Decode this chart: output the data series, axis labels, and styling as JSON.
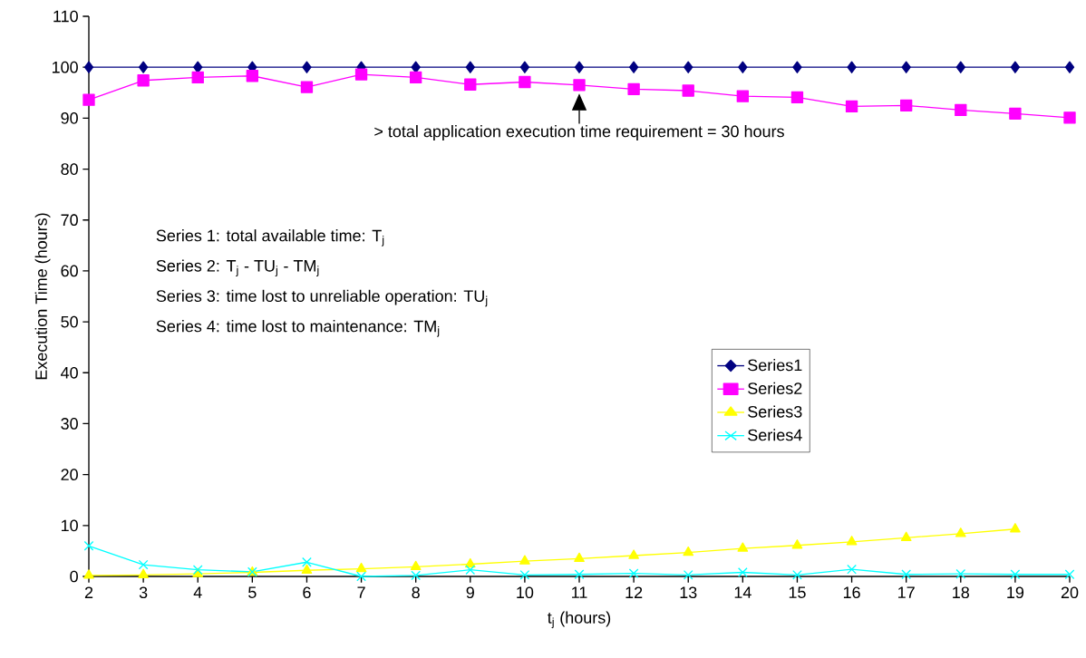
{
  "chart_data": {
    "type": "line",
    "xlabel": "t$_{j}$ (hours)",
    "ylabel": "Execution Time (hours)",
    "x": [
      2,
      3,
      4,
      5,
      6,
      7,
      8,
      9,
      10,
      11,
      12,
      13,
      14,
      15,
      16,
      17,
      18,
      19,
      20
    ],
    "series": [
      {
        "name": "Series1",
        "color": "#000080",
        "marker": "diamond",
        "values": [
          100,
          100,
          100,
          100,
          100,
          100,
          100,
          100,
          100,
          100,
          100,
          100,
          100,
          100,
          100,
          100,
          100,
          100,
          100
        ]
      },
      {
        "name": "Series2",
        "color": "#ff00ff",
        "marker": "square",
        "values": [
          93.6,
          97.4,
          98.0,
          98.3,
          96.1,
          98.6,
          98.0,
          96.6,
          97.1,
          96.5,
          95.7,
          95.4,
          94.3,
          94.1,
          92.3,
          92.5,
          91.6,
          90.9,
          90.1
        ]
      },
      {
        "name": "Series3",
        "color": "#ffff00",
        "marker": "triangle",
        "values": [
          0.2,
          0.3,
          0.5,
          0.8,
          1.2,
          1.5,
          1.9,
          2.4,
          3.0,
          3.5,
          4.1,
          4.7,
          5.5,
          6.1,
          6.8,
          7.6,
          8.4,
          9.3,
          null
        ]
      },
      {
        "name": "Series4",
        "color": "#00ffff",
        "marker": "cross",
        "values": [
          6.0,
          2.3,
          1.3,
          0.9,
          2.8,
          0.0,
          0.2,
          1.3,
          0.3,
          0.4,
          0.6,
          0.3,
          0.8,
          0.3,
          1.4,
          0.4,
          0.5,
          0.4,
          0.4
        ]
      }
    ],
    "annotations": [
      {
        "text": "> total application execution time requirement = 30 hours",
        "x": 11,
        "y": 96.5
      },
      "Series 1: total available time: T$_{j}$",
      "Series 2: T$_{j}$ - TU$_{j}$ - TM$_{j}$",
      "Series 3: time lost to unreliable operation: TU$_{j}$",
      "Series 4: time lost to maintenance: TM$_{j}$"
    ],
    "xlim": [
      2,
      20
    ],
    "xticks": [
      2,
      3,
      4,
      5,
      6,
      7,
      8,
      9,
      10,
      11,
      12,
      13,
      14,
      15,
      16,
      17,
      18,
      19,
      20
    ],
    "ylim": [
      0,
      110
    ],
    "yticks": [
      0,
      10,
      20,
      30,
      40,
      50,
      60,
      70,
      80,
      90,
      100,
      110
    ],
    "legend": "right",
    "grid": false,
    "line_style": "solid"
  }
}
